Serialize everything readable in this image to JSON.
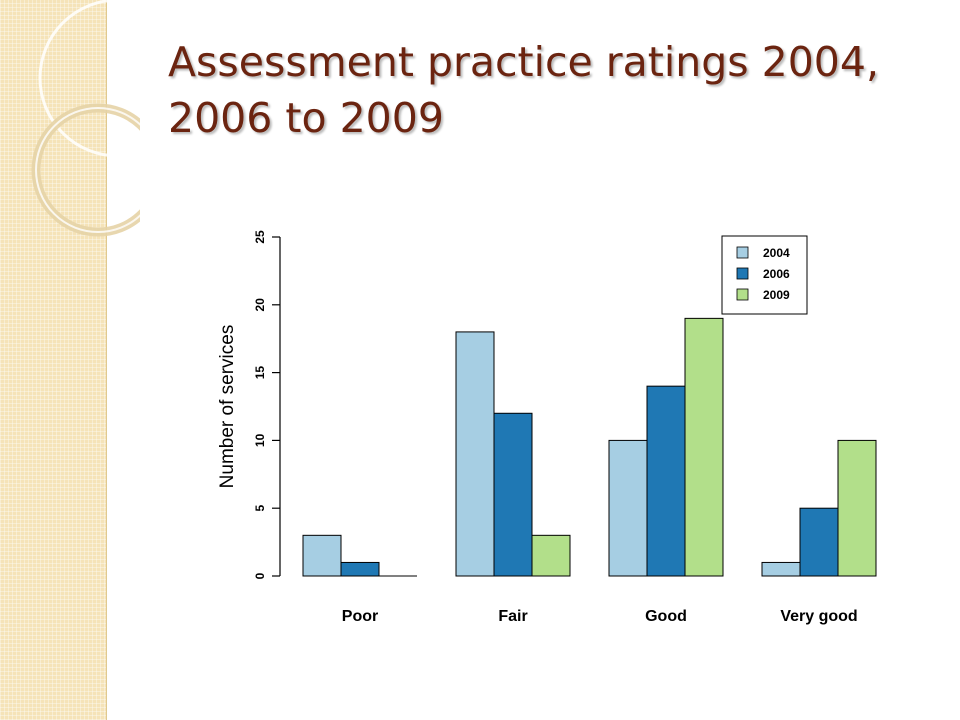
{
  "slide": {
    "title": "Assessment practice ratings 2004, 2006 to 2009"
  },
  "colors": {
    "title": "#6b2410",
    "strip": "#f5e3b8"
  },
  "chart_data": {
    "type": "bar",
    "title": "",
    "xlabel": "",
    "ylabel": "Number of services",
    "ylim": [
      0,
      25
    ],
    "yticks": [
      0,
      5,
      10,
      15,
      20,
      25
    ],
    "categories": [
      "Poor",
      "Fair",
      "Good",
      "Very good"
    ],
    "series": [
      {
        "name": "2004",
        "color": "#a6cee3",
        "values": [
          3,
          18,
          10,
          1
        ]
      },
      {
        "name": "2006",
        "color": "#1f78b4",
        "values": [
          1,
          12,
          14,
          5
        ]
      },
      {
        "name": "2009",
        "color": "#b2df8a",
        "values": [
          0,
          3,
          19,
          10
        ]
      }
    ],
    "legend_position": "top-right",
    "grid": false
  }
}
